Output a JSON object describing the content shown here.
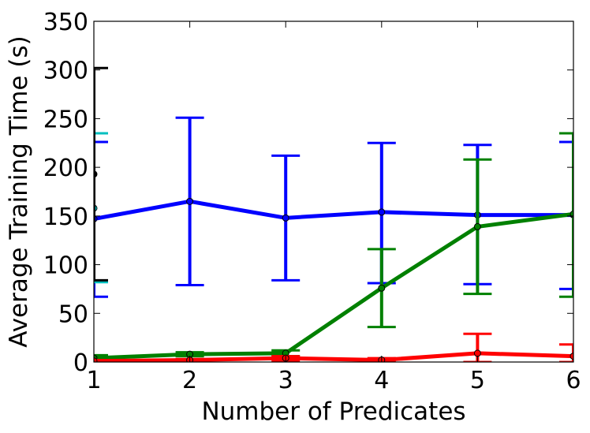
{
  "chart_data": {
    "type": "line",
    "title": "",
    "xlabel": "Number of Predicates",
    "ylabel": "Average Training Time (s)",
    "xlim": [
      1,
      6
    ],
    "ylim": [
      0,
      350
    ],
    "x_ticks": [
      1,
      2,
      3,
      4,
      5,
      6
    ],
    "y_ticks": [
      0,
      50,
      100,
      150,
      200,
      250,
      300,
      350
    ],
    "grid": false,
    "legend": "none",
    "series": [
      {
        "color": "#0000ff",
        "x": [
          1,
          2,
          3,
          4,
          5,
          6
        ],
        "y": [
          147,
          165,
          148,
          154,
          151,
          151
        ],
        "err_low": [
          67,
          79,
          84,
          81,
          80,
          75
        ],
        "err_high": [
          226,
          251,
          212,
          225,
          223,
          226
        ]
      },
      {
        "color": "#008000",
        "x": [
          1,
          2,
          3,
          4,
          5,
          6
        ],
        "y": [
          4,
          8,
          9,
          76,
          139,
          152
        ],
        "err_low": [
          1,
          6,
          6,
          36,
          70,
          67
        ],
        "err_high": [
          7,
          10,
          12,
          116,
          208,
          235
        ]
      },
      {
        "color": "#ff0000",
        "x": [
          1,
          2,
          3,
          4,
          5,
          6
        ],
        "y": [
          1,
          2,
          4,
          2,
          9,
          6
        ],
        "err_low": [
          0,
          0,
          1,
          0,
          0,
          0
        ],
        "err_high": [
          2,
          3,
          6,
          4,
          29,
          18
        ]
      },
      {
        "color": "#00bfbf",
        "x": [
          1
        ],
        "y": [
          158
        ],
        "err_low": [
          82
        ],
        "err_high": [
          235
        ]
      },
      {
        "color": "#000000",
        "x": [
          1
        ],
        "y": [
          193
        ],
        "err_low": [
          84
        ],
        "err_high": [
          302
        ]
      }
    ]
  }
}
